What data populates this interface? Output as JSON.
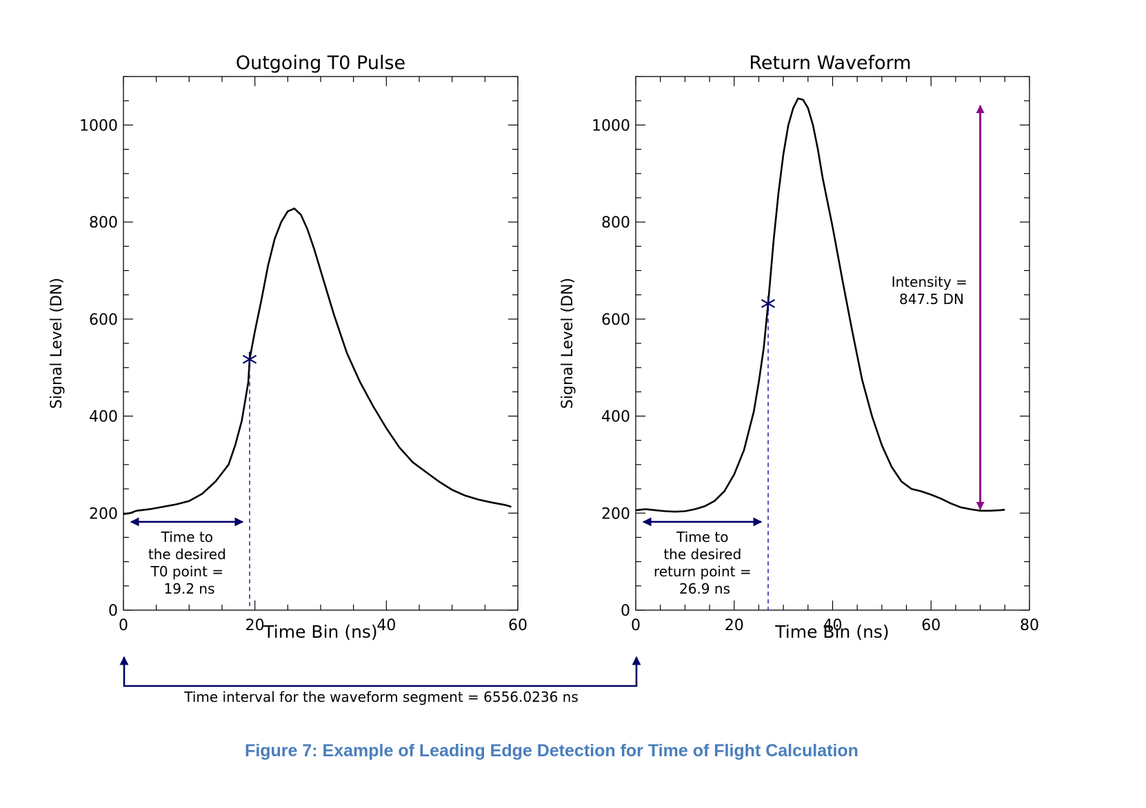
{
  "colors": {
    "curve": "#000000",
    "marker": "#000066",
    "dashed": "#2a2aa8",
    "arrow": "#000066",
    "intensity_arrow": "#8c0a8c",
    "caption": "#4a7ebb"
  },
  "chart_data": [
    {
      "type": "line",
      "title": "Outgoing T0 Pulse",
      "xlabel": "Time Bin (ns)",
      "ylabel": "Signal Level (DN)",
      "xlim": [
        0,
        60
      ],
      "ylim": [
        0,
        1100
      ],
      "xticks": [
        0,
        20,
        40,
        60
      ],
      "yticks": [
        0,
        200,
        400,
        600,
        800,
        1000
      ],
      "x_minor_step": 5,
      "y_minor_step": 50,
      "grid": false,
      "series": [
        {
          "x": [
            0,
            1,
            2,
            4,
            6,
            8,
            10,
            12,
            14,
            16,
            17,
            18,
            19,
            19.2,
            20,
            21,
            22,
            23,
            24,
            25,
            26,
            27,
            28,
            29,
            30,
            32,
            34,
            36,
            38,
            40,
            42,
            44,
            46,
            48,
            50,
            52,
            54,
            56,
            58,
            59
          ],
          "values": [
            198,
            200,
            205,
            208,
            213,
            218,
            225,
            240,
            265,
            300,
            340,
            390,
            470,
            517,
            575,
            640,
            710,
            765,
            800,
            822,
            828,
            815,
            785,
            745,
            700,
            610,
            530,
            470,
            420,
            375,
            335,
            305,
            285,
            265,
            248,
            236,
            228,
            222,
            217,
            213
          ]
        }
      ],
      "marker": {
        "x": 19.2,
        "y": 517,
        "symbol": "*"
      },
      "annotations": {
        "interval": {
          "lines": [
            "Time to",
            "the desired",
            "T0 point =",
            "19.2 ns"
          ],
          "value_ns": 19.2,
          "arrow_y": 182
        }
      }
    },
    {
      "type": "line",
      "title": "Return Waveform",
      "xlabel": "Time Bin (ns)",
      "ylabel": "Signal Level (DN)",
      "xlim": [
        0,
        80
      ],
      "ylim": [
        0,
        1100
      ],
      "xticks": [
        0,
        20,
        40,
        60,
        80
      ],
      "yticks": [
        0,
        200,
        400,
        600,
        800,
        1000
      ],
      "x_minor_step": 5,
      "y_minor_step": 50,
      "grid": false,
      "series": [
        {
          "x": [
            0,
            2,
            4,
            6,
            8,
            10,
            12,
            14,
            16,
            18,
            20,
            22,
            24,
            25,
            26,
            26.9,
            28,
            29,
            30,
            31,
            32,
            33,
            34,
            35,
            36,
            37,
            38,
            40,
            42,
            44,
            46,
            48,
            50,
            52,
            54,
            56,
            58,
            60,
            62,
            64,
            66,
            68,
            70,
            72,
            74,
            75
          ],
          "values": [
            206,
            208,
            206,
            204,
            203,
            204,
            208,
            214,
            225,
            245,
            280,
            330,
            410,
            470,
            540,
            632,
            760,
            860,
            940,
            1000,
            1035,
            1055,
            1052,
            1035,
            1000,
            950,
            890,
            790,
            680,
            575,
            475,
            400,
            340,
            295,
            265,
            250,
            245,
            238,
            230,
            220,
            212,
            208,
            205,
            205,
            206,
            207
          ]
        }
      ],
      "marker": {
        "x": 26.9,
        "y": 632,
        "symbol": "*"
      },
      "annotations": {
        "interval": {
          "lines": [
            "Time to",
            "the desired",
            "return point =",
            "26.9 ns"
          ],
          "value_ns": 26.9,
          "arrow_y": 182
        },
        "intensity": {
          "lines": [
            "Intensity =",
            "847.5 DN"
          ],
          "x": 70,
          "y_top": 1040,
          "y_bottom": 208
        }
      }
    }
  ],
  "segment_interval": {
    "label": "Time interval for the waveform segment = 6556.0236 ns"
  },
  "caption": "Figure 7: Example of Leading Edge Detection for Time of Flight Calculation"
}
